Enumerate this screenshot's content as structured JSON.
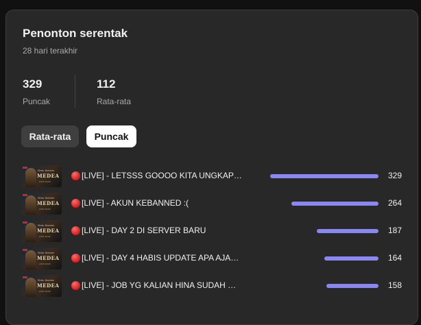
{
  "card": {
    "title": "Penonton serentak",
    "subtitle": "28 hari terakhir"
  },
  "stats": {
    "peak": {
      "value": "329",
      "label": "Puncak"
    },
    "average": {
      "value": "112",
      "label": "Rata-rata"
    }
  },
  "toggle": {
    "average_label": "Rata-rata",
    "peak_label": "Puncak",
    "selected": "Puncak"
  },
  "thumbnail": {
    "line1": "New Server",
    "line2": "MEDEA",
    "line3": "LIVE NOW"
  },
  "streams": [
    {
      "title": "[LIVE] - LETSSS GOOOO KITA UNGKAP…",
      "value": 329
    },
    {
      "title": "[LIVE] - AKUN KEBANNED :(",
      "value": 264
    },
    {
      "title": "[LIVE] - DAY 2 DI SERVER BARU",
      "value": 187
    },
    {
      "title": "[LIVE] - DAY 4 HABIS UPDATE APA AJA…",
      "value": 164
    },
    {
      "title": "[LIVE] - JOB YG KALIAN HINA SUDAH …",
      "value": 158
    }
  ],
  "colors": {
    "bar": "#8b87f0",
    "card": "#282828",
    "live": "#d42a2a"
  }
}
